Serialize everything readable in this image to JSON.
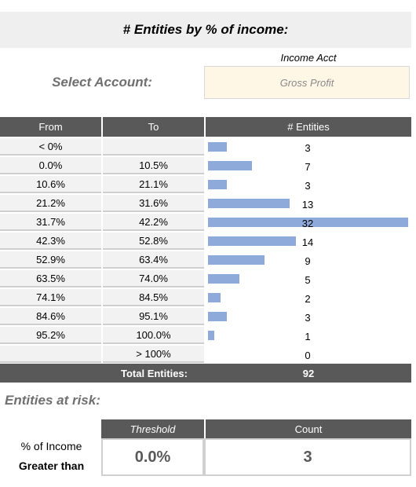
{
  "title": "# Entities by % of income:",
  "account": {
    "header": "Income Acct",
    "label": "Select Account:",
    "value": "Gross Profit"
  },
  "table": {
    "headers": [
      "From",
      "To",
      "# Entities"
    ],
    "rows": [
      {
        "from": "< 0%",
        "to": "",
        "count": "3",
        "n": 3
      },
      {
        "from": "0.0%",
        "to": "10.5%",
        "count": "7",
        "n": 7
      },
      {
        "from": "10.6%",
        "to": "21.1%",
        "count": "3",
        "n": 3
      },
      {
        "from": "21.2%",
        "to": "31.6%",
        "count": "13",
        "n": 13
      },
      {
        "from": "31.7%",
        "to": "42.2%",
        "count": "32",
        "n": 32
      },
      {
        "from": "42.3%",
        "to": "52.8%",
        "count": "14",
        "n": 14
      },
      {
        "from": "52.9%",
        "to": "63.4%",
        "count": "9",
        "n": 9
      },
      {
        "from": "63.5%",
        "to": "74.0%",
        "count": "5",
        "n": 5
      },
      {
        "from": "74.1%",
        "to": "84.5%",
        "count": "2",
        "n": 2
      },
      {
        "from": "84.6%",
        "to": "95.1%",
        "count": "3",
        "n": 3
      },
      {
        "from": "95.2%",
        "to": "100.0%",
        "count": "1",
        "n": 1
      },
      {
        "from": "",
        "to": "> 100%",
        "count": "0",
        "n": 0
      }
    ],
    "total_label": "Total Entities:",
    "total_value": "92",
    "bar_color": "#8eaadb"
  },
  "risk": {
    "title": "Entities at risk:",
    "label_line1": "% of Income",
    "label_line2": "Greater than",
    "threshold_header": "Threshold",
    "count_header": "Count",
    "threshold_value": "0.0%",
    "count_value": "3"
  }
}
